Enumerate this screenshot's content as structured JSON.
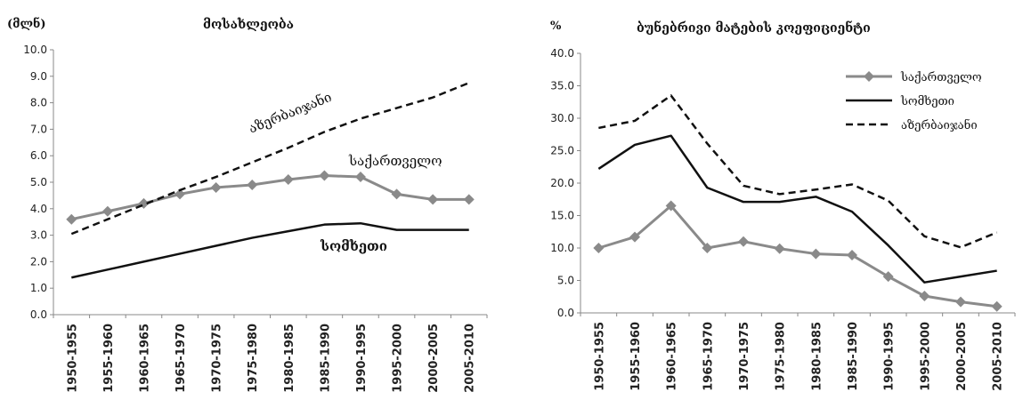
{
  "chart_data": [
    {
      "type": "line",
      "title": "მოსახლეობა",
      "ylabel": "(მლნ)",
      "ylim": [
        0,
        10
      ],
      "ytick_step": 1,
      "categories": [
        "1950-1955",
        "1955-1960",
        "1960-1965",
        "1965-1970",
        "1970-1975",
        "1975-1980",
        "1980-1985",
        "1985-1990",
        "1990-1995",
        "1995-2000",
        "2000-2005",
        "2005-2010"
      ],
      "series": [
        {
          "name": "საქართველო",
          "values": [
            3.6,
            3.9,
            4.2,
            4.55,
            4.8,
            4.9,
            5.1,
            5.25,
            5.2,
            4.55,
            4.35,
            4.35
          ],
          "style": "marker",
          "color": "#8a8a8a"
        },
        {
          "name": "სომხეთი",
          "values": [
            1.4,
            1.7,
            2.0,
            2.3,
            2.6,
            2.9,
            3.15,
            3.4,
            3.45,
            3.2,
            3.2,
            3.2
          ],
          "style": "solid",
          "color": "#111111"
        },
        {
          "name": "აზერბაიჯანი",
          "values": [
            3.05,
            3.6,
            4.15,
            4.7,
            5.2,
            5.75,
            6.3,
            6.9,
            7.4,
            7.8,
            8.2,
            8.75
          ],
          "style": "dashed",
          "color": "#111111"
        }
      ],
      "legend": "inline labels",
      "grid": false
    },
    {
      "type": "line",
      "title": "ბუნებრივი მატების კოეფიციენტი",
      "ylabel": "%",
      "ylim": [
        0,
        40
      ],
      "ytick_step": 5,
      "categories": [
        "1950-1955",
        "1955-1960",
        "1960-1965",
        "1965-1970",
        "1970-1975",
        "1975-1980",
        "1980-1985",
        "1985-1990",
        "1990-1995",
        "1995-2000",
        "2000-2005",
        "2005-2010"
      ],
      "series": [
        {
          "name": "საქართველო",
          "values": [
            10.0,
            11.7,
            16.5,
            10.0,
            11.0,
            9.9,
            9.1,
            8.9,
            5.6,
            2.6,
            1.7,
            1.0
          ],
          "style": "marker",
          "color": "#8a8a8a"
        },
        {
          "name": "სომხეთი",
          "values": [
            22.2,
            25.9,
            27.3,
            19.3,
            17.1,
            17.1,
            17.9,
            15.6,
            10.4,
            4.7,
            5.6,
            6.5
          ],
          "style": "solid",
          "color": "#111111"
        },
        {
          "name": "აზერბაიჯანი",
          "values": [
            28.5,
            29.6,
            33.5,
            26.1,
            19.6,
            18.3,
            19.0,
            19.8,
            17.3,
            11.8,
            10.1,
            12.4
          ],
          "style": "dashed",
          "color": "#111111"
        }
      ],
      "legend": "top-right",
      "grid": false
    }
  ]
}
